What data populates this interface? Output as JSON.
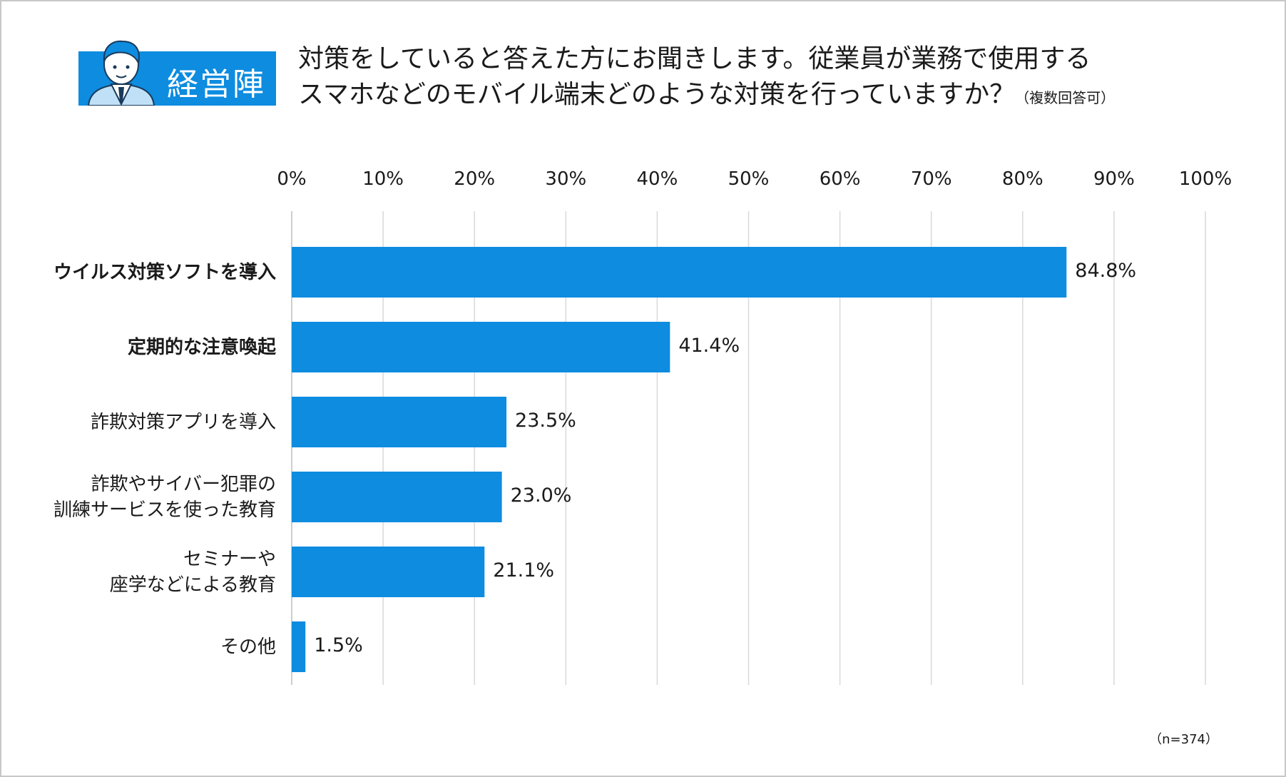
{
  "header": {
    "badge_label": "経営陣",
    "title_line1": "対策をしていると答えた方にお聞きします。従業員が業務で使用する",
    "title_line2": "スマホなどのモバイル端末どのような対策を行っていますか？",
    "title_note": "（複数回答可）"
  },
  "footnote": "（n=374）",
  "chart_data": {
    "type": "bar",
    "orientation": "horizontal",
    "title": "対策をしていると答えた方にお聞きします。従業員が業務で使用するスマホなどのモバイル端末どのような対策を行っていますか？（複数回答可）",
    "xlim": [
      0,
      100
    ],
    "ticks": [
      0,
      10,
      20,
      30,
      40,
      50,
      60,
      70,
      80,
      90,
      100
    ],
    "tick_labels": [
      "0%",
      "10%",
      "20%",
      "30%",
      "40%",
      "50%",
      "60%",
      "70%",
      "80%",
      "90%",
      "100%"
    ],
    "grid": true,
    "bar_color": "#0d8ce0",
    "categories": [
      {
        "lines": [
          "ウイルス対策ソフトを導入"
        ],
        "bold": true
      },
      {
        "lines": [
          "定期的な注意喚起"
        ],
        "bold": true
      },
      {
        "lines": [
          "詐欺対策アプリを導入"
        ],
        "bold": false
      },
      {
        "lines": [
          "詐欺やサイバー犯罪の",
          "訓練サービスを使った教育"
        ],
        "bold": false
      },
      {
        "lines": [
          "セミナーや",
          "座学などによる教育"
        ],
        "bold": false
      },
      {
        "lines": [
          "その他"
        ],
        "bold": false
      }
    ],
    "values": [
      84.8,
      41.4,
      23.5,
      23.0,
      21.1,
      1.5
    ],
    "value_labels": [
      "84.8%",
      "41.4%",
      "23.5%",
      "23.0%",
      "21.1%",
      "1.5%"
    ]
  }
}
